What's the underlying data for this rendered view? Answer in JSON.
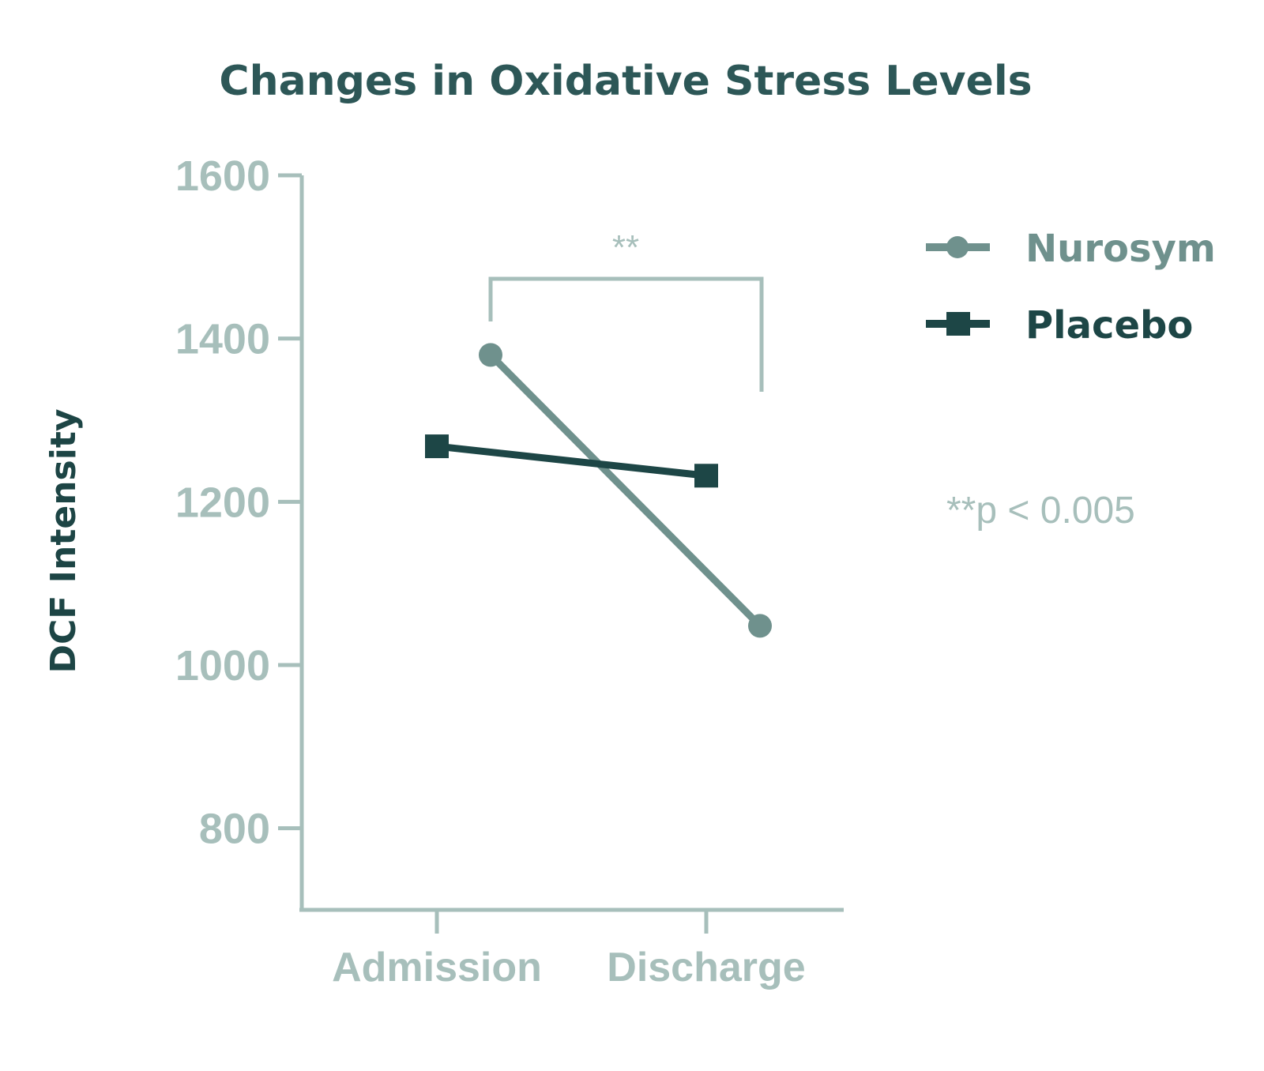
{
  "chart_data": {
    "type": "line",
    "title": "Changes in Oxidative Stress Levels",
    "xlabel": "",
    "ylabel": "DCF Intensity",
    "categories": [
      "Admission",
      "Discharge"
    ],
    "ylim": [
      700,
      1600
    ],
    "yticks": [
      800,
      1000,
      1200,
      1400,
      1600
    ],
    "grid": false,
    "legend_position": "right",
    "series": [
      {
        "name": "Nurosym",
        "values": [
          1380,
          1048
        ],
        "color": "#6f918d",
        "marker": "circle"
      },
      {
        "name": "Placebo",
        "values": [
          1268,
          1232
        ],
        "color": "#1d4646",
        "marker": "square"
      }
    ],
    "annotations": {
      "significance_bracket": "**",
      "p_value_note": "**p < 0.005"
    },
    "axis_color": "#a7bfbb"
  }
}
